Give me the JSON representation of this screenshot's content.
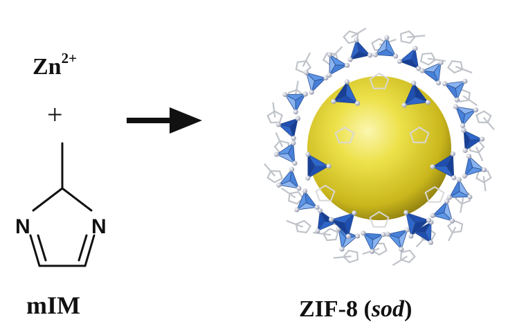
{
  "reactants": {
    "metal_ion": {
      "symbol": "Zn",
      "charge": "2+"
    },
    "plus": "+",
    "ligand": {
      "atom_label_left": "N",
      "atom_label_right": "N",
      "name": "mIM"
    }
  },
  "product": {
    "name_prefix": "ZIF-8 (",
    "topology": "sod",
    "name_suffix": ")"
  },
  "colors": {
    "tetrahedron_light": "#5d96e6",
    "tetrahedron_dark": "#1f4fb0",
    "cage_sphere": "#e8dc3a",
    "linker_stick": "#bfc3c9",
    "node_atom": "#9aa0b3",
    "text": "#111111"
  }
}
